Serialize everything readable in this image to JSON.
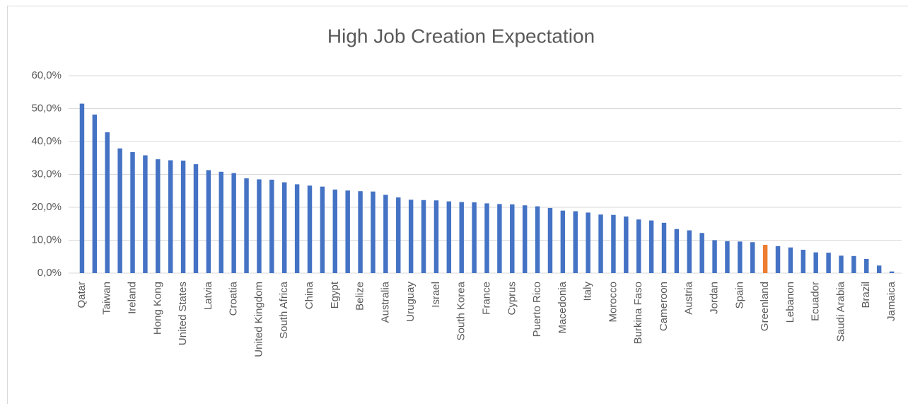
{
  "chart_data": {
    "type": "bar",
    "title": "High Job Creation Expectation",
    "categories": [
      "Qatar",
      null,
      "Taiwan",
      null,
      "Ireland",
      null,
      "Hong Kong",
      null,
      "United States",
      null,
      "Latvia",
      null,
      "Croatia",
      null,
      "United Kingdom",
      null,
      "South Africa",
      null,
      "China",
      null,
      "Egypt",
      null,
      "Belize",
      null,
      "Australia",
      null,
      "Uruguay",
      null,
      "Israel",
      null,
      "South Korea",
      null,
      "France",
      null,
      "Cyprus",
      null,
      "Puerto Rico",
      null,
      "Macedonia",
      null,
      "Italy",
      null,
      "Morocco",
      null,
      "Burkina Faso",
      null,
      "Cameroon",
      null,
      "Austria",
      null,
      "Jordan",
      null,
      "Spain",
      null,
      "Greenland",
      null,
      "Lebanon",
      null,
      "Ecuador",
      null,
      "Saudi Arabia",
      null,
      "Brazil",
      null,
      "Jamaica"
    ],
    "values": [
      51.5,
      48.2,
      42.8,
      37.9,
      36.8,
      35.8,
      34.6,
      34.3,
      34.2,
      33.1,
      31.3,
      30.8,
      30.4,
      28.8,
      28.5,
      28.4,
      27.6,
      27.0,
      26.6,
      26.3,
      25.4,
      25.1,
      24.9,
      24.8,
      23.8,
      23.0,
      22.3,
      22.2,
      22.1,
      21.8,
      21.6,
      21.5,
      21.2,
      21.0,
      20.9,
      20.6,
      20.3,
      19.8,
      19.0,
      18.8,
      18.4,
      17.8,
      17.7,
      17.2,
      16.3,
      16.0,
      15.3,
      13.4,
      13.0,
      12.2,
      10.0,
      9.7,
      9.6,
      9.4,
      8.6,
      8.2,
      7.8,
      7.1,
      6.3,
      6.2,
      5.3,
      5.2,
      4.3,
      2.3,
      0.5
    ],
    "colors": [
      "#4472c4",
      "#4472c4",
      "#4472c4",
      "#4472c4",
      "#4472c4",
      "#4472c4",
      "#4472c4",
      "#4472c4",
      "#4472c4",
      "#4472c4",
      "#4472c4",
      "#4472c4",
      "#4472c4",
      "#4472c4",
      "#4472c4",
      "#4472c4",
      "#4472c4",
      "#4472c4",
      "#4472c4",
      "#4472c4",
      "#4472c4",
      "#4472c4",
      "#4472c4",
      "#4472c4",
      "#4472c4",
      "#4472c4",
      "#4472c4",
      "#4472c4",
      "#4472c4",
      "#4472c4",
      "#4472c4",
      "#4472c4",
      "#4472c4",
      "#4472c4",
      "#4472c4",
      "#4472c4",
      "#4472c4",
      "#4472c4",
      "#4472c4",
      "#4472c4",
      "#4472c4",
      "#4472c4",
      "#4472c4",
      "#4472c4",
      "#4472c4",
      "#4472c4",
      "#4472c4",
      "#4472c4",
      "#4472c4",
      "#4472c4",
      "#4472c4",
      "#4472c4",
      "#4472c4",
      "#4472c4",
      "#ed7d31",
      "#4472c4",
      "#4472c4",
      "#4472c4",
      "#4472c4",
      "#4472c4",
      "#4472c4",
      "#4472c4",
      "#4472c4",
      "#4472c4",
      "#4472c4"
    ],
    "ylim": [
      0,
      60
    ],
    "yticks": [
      {
        "value": 0,
        "label": "0,0%"
      },
      {
        "value": 10,
        "label": "10,0%"
      },
      {
        "value": 20,
        "label": "20,0%"
      },
      {
        "value": 30,
        "label": "30,0%"
      },
      {
        "value": 40,
        "label": "40,0%"
      },
      {
        "value": 50,
        "label": "50,0%"
      },
      {
        "value": 60,
        "label": "60,0%"
      }
    ],
    "grid": true
  }
}
